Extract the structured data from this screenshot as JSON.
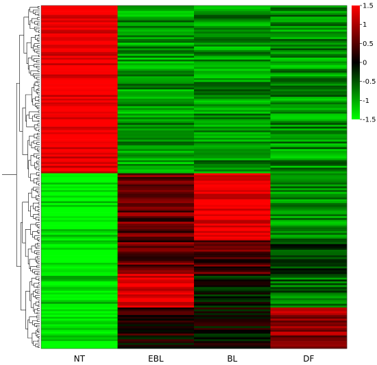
{
  "chart_data": {
    "type": "heatmap",
    "title": "",
    "xlabel": "",
    "ylabel": "",
    "columns": [
      "NT",
      "EBL",
      "BL",
      "DF"
    ],
    "color_scale": {
      "min": -1.5,
      "max": 1.5,
      "ticks": [
        1.5,
        1,
        0.5,
        0,
        -0.5,
        -1,
        -1.5
      ],
      "low_color": "#00ff00",
      "mid_color": "#000000",
      "high_color": "#ff0000"
    },
    "row_clusters": [
      {
        "cluster": 1,
        "rows": 90,
        "values": [
          1.5,
          -0.9,
          -0.85,
          -0.85
        ]
      },
      {
        "cluster": 2,
        "rows": 36,
        "values": [
          -1.45,
          0.6,
          1.5,
          -0.8
        ]
      },
      {
        "cluster": 3,
        "rows": 18,
        "values": [
          -1.5,
          0.55,
          0.45,
          -0.3
        ]
      },
      {
        "cluster": 4,
        "rows": 18,
        "values": [
          -1.35,
          1.45,
          -0.1,
          -0.6
        ]
      },
      {
        "cluster": 5,
        "rows": 22,
        "values": [
          -1.5,
          0.15,
          0.05,
          0.85
        ]
      }
    ],
    "dendrogram": "hierarchical clustering tree on rows (left)"
  }
}
